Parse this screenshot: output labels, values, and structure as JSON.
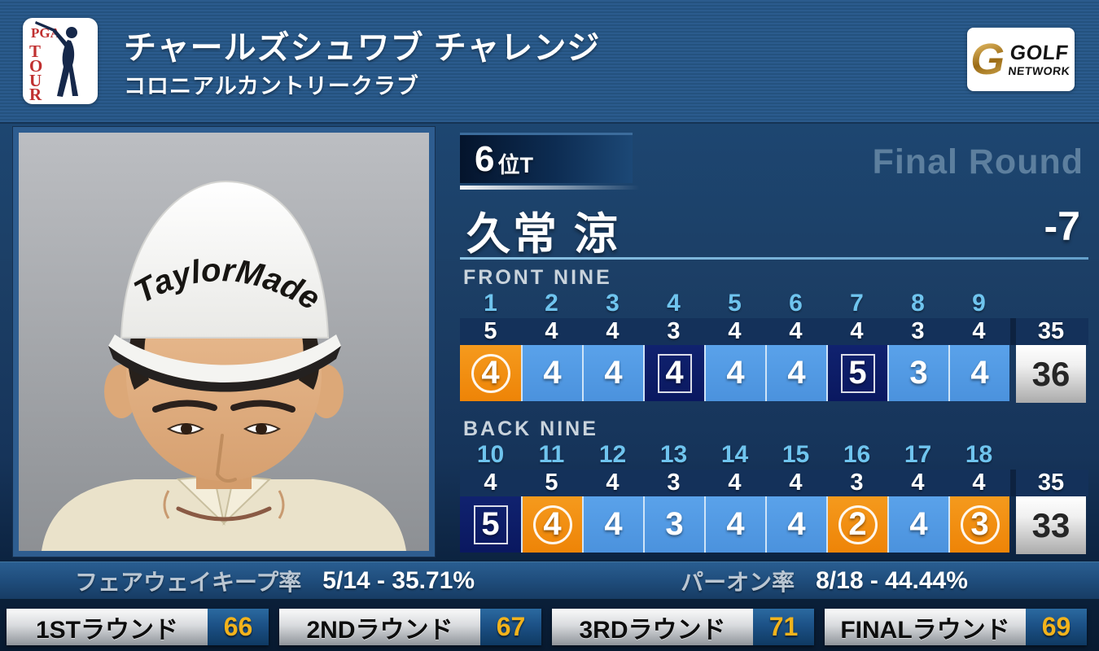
{
  "header": {
    "title": "チャールズシュワブ チャレンジ",
    "subtitle": "コロニアルカントリークラブ",
    "pga_logo": {
      "top": "PGA",
      "letters": "TOUR"
    },
    "network_logo": {
      "monogram": "G",
      "line1": "GOLF",
      "line2": "NETWORK"
    }
  },
  "player": {
    "rank_number": "6",
    "rank_suffix": "位T",
    "name": "久常 涼",
    "round_label": "Final Round",
    "total_score": "-7",
    "cap_text": "TaylorMade"
  },
  "scorecard": {
    "front": {
      "label": "FRONT NINE",
      "holes": [
        "1",
        "2",
        "3",
        "4",
        "5",
        "6",
        "7",
        "8",
        "9"
      ],
      "pars": [
        5,
        4,
        4,
        3,
        4,
        4,
        4,
        3,
        4
      ],
      "par_total": 35,
      "scores": [
        {
          "value": 4,
          "result": "birdie"
        },
        {
          "value": 4,
          "result": "par"
        },
        {
          "value": 4,
          "result": "par"
        },
        {
          "value": 4,
          "result": "bogey"
        },
        {
          "value": 4,
          "result": "par"
        },
        {
          "value": 4,
          "result": "par"
        },
        {
          "value": 5,
          "result": "bogey"
        },
        {
          "value": 3,
          "result": "par"
        },
        {
          "value": 4,
          "result": "par"
        }
      ],
      "score_total": 36
    },
    "back": {
      "label": "BACK NINE",
      "holes": [
        "10",
        "11",
        "12",
        "13",
        "14",
        "15",
        "16",
        "17",
        "18"
      ],
      "pars": [
        4,
        5,
        4,
        3,
        4,
        4,
        3,
        4,
        4
      ],
      "par_total": 35,
      "scores": [
        {
          "value": 5,
          "result": "bogey"
        },
        {
          "value": 4,
          "result": "birdie"
        },
        {
          "value": 4,
          "result": "par"
        },
        {
          "value": 3,
          "result": "par"
        },
        {
          "value": 4,
          "result": "par"
        },
        {
          "value": 4,
          "result": "par"
        },
        {
          "value": 2,
          "result": "birdie"
        },
        {
          "value": 4,
          "result": "par"
        },
        {
          "value": 3,
          "result": "birdie"
        }
      ],
      "score_total": 33
    }
  },
  "stats": [
    {
      "label": "フェアウェイキープ率",
      "value": "5/14 - 35.71%"
    },
    {
      "label": "パーオン率",
      "value": "8/18 - 44.44%"
    }
  ],
  "rounds": [
    {
      "label": "1STラウンド",
      "score": "66"
    },
    {
      "label": "2NDラウンド",
      "score": "67"
    },
    {
      "label": "3RDラウンド",
      "score": "71"
    },
    {
      "label": "FINALラウンド",
      "score": "69"
    }
  ],
  "colors": {
    "birdie": "#ee8407",
    "par": "#519ae6",
    "bogey": "#0b1c69",
    "round_score_gold": "#f2b31c",
    "hole_number_cyan": "#6fc4ee",
    "panel_navy": "#1c3f66"
  }
}
